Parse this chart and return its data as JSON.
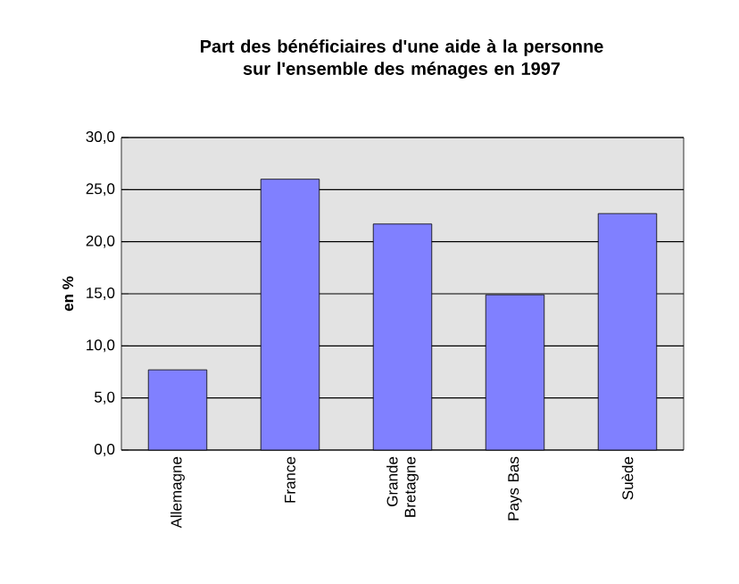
{
  "chart_data": {
    "type": "bar",
    "title": "Part des bénéficiaires d'une aide à la personne sur l'ensemble des ménages en 1997",
    "ylabel": "en %",
    "categories": [
      "Allemagne",
      "France",
      "Grande Bretagne",
      "Pays Bas",
      "Suède"
    ],
    "values": [
      7.7,
      26.0,
      21.7,
      14.9,
      22.7
    ],
    "color": "#8080ff",
    "ylim": [
      0,
      30
    ],
    "yticks": [
      {
        "value": 0,
        "label": "0,0"
      },
      {
        "value": 5,
        "label": "5,0"
      },
      {
        "value": 10,
        "label": "10,0"
      },
      {
        "value": 15,
        "label": "15,0"
      },
      {
        "value": 20,
        "label": "20,0"
      },
      {
        "value": 25,
        "label": "25,0"
      },
      {
        "value": 30,
        "label": "30,0"
      }
    ],
    "grid": "y"
  }
}
